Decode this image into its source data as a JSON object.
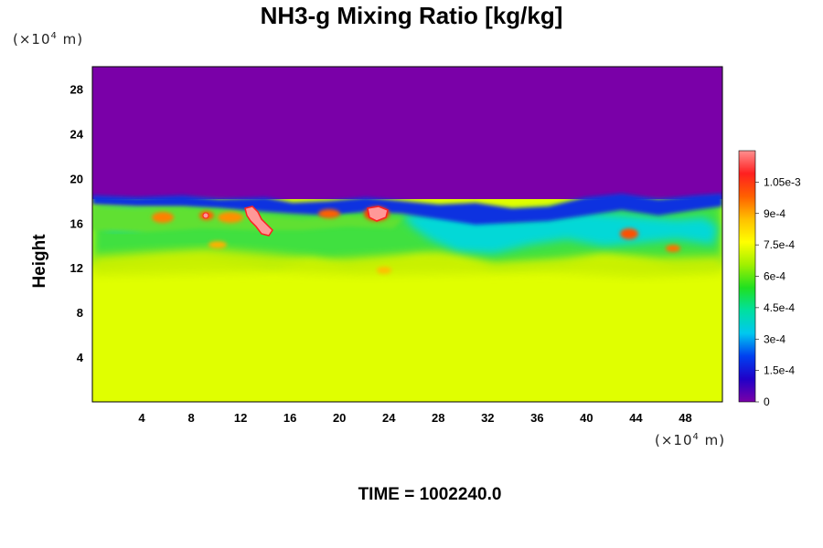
{
  "chart_data": {
    "type": "heatmap",
    "title": "NH3-g Mixing Ratio [kg/kg]",
    "ylabel": "Height",
    "x_unit": "(×10",
    "y_unit": "(×10",
    "unit_exp": "4",
    "unit_tail": " m)",
    "xlim": [
      0,
      51
    ],
    "ylim": [
      0,
      30
    ],
    "x_ticks": [
      4,
      8,
      12,
      16,
      20,
      24,
      28,
      32,
      36,
      40,
      44,
      48
    ],
    "y_ticks": [
      4,
      8,
      12,
      16,
      20,
      24,
      28
    ],
    "colorbar": {
      "range": [
        0,
        0.0012
      ],
      "tick_values": [
        0,
        0.00015,
        0.0003,
        0.00045,
        0.0006,
        0.00075,
        0.0009,
        0.00105
      ],
      "tick_labels": [
        "0",
        "1.5e-4",
        "3e-4",
        "4.5e-4",
        "6e-4",
        "7.5e-4",
        "9e-4",
        "1.05e-3"
      ],
      "colors": [
        "#7a00a8",
        "#2000c8",
        "#0040f0",
        "#00c8f0",
        "#00e0a0",
        "#20e020",
        "#a0f000",
        "#ffff00",
        "#ffc000",
        "#ff6000",
        "#ff2020",
        "#ff9090"
      ]
    },
    "fields": {
      "lower_layer": {
        "y_range": [
          0,
          11
        ],
        "value": 0.00077
      },
      "upper_layer": {
        "y_range": [
          18,
          30
        ],
        "value": 0
      }
    }
  },
  "footer": {
    "time_label": "TIME = 1002240.0"
  }
}
